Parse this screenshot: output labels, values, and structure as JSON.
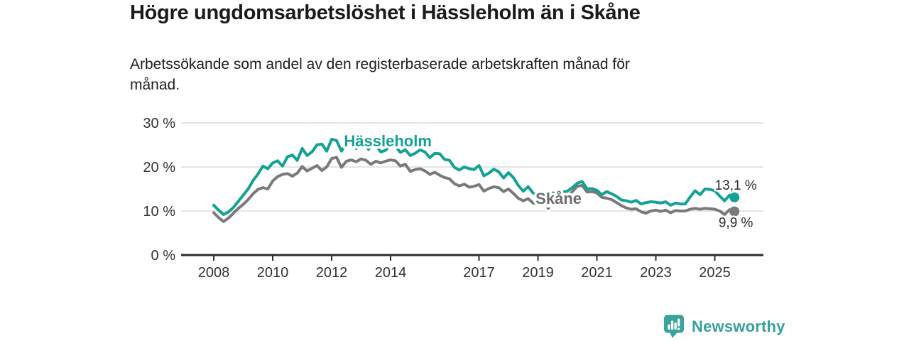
{
  "chart_data": {
    "type": "line",
    "title": "Högre ungdomsarbetslöshet i Hässleholm än i Skåne",
    "subtitle": "Arbetssökande som andel av den registerbaserade arbetskraften månad för månad.",
    "subtitle_lines": [
      "Arbetssökande som andel av den registerbaserade arbetskraften månad för",
      "månad."
    ],
    "unit": "%",
    "x_start": 2008.0,
    "x_step": 0.1666667,
    "xlim": [
      2006.9,
      2026.65
    ],
    "ylim": [
      0,
      31
    ],
    "grid": "horizontal",
    "x_tick_values": [
      2008,
      2010,
      2012,
      2014,
      2017,
      2019,
      2021,
      2023,
      2025
    ],
    "x_tick_labels": [
      "2008",
      "2010",
      "2012",
      "2014",
      "2017",
      "2019",
      "2021",
      "2023",
      "2025"
    ],
    "y_tick_values": [
      0,
      10,
      20,
      30
    ],
    "y_tick_labels": [
      "0 %",
      "10 %",
      "20 %",
      "30 %"
    ],
    "series": [
      {
        "name": "Skåne",
        "color": "#7a7a7a",
        "label_color": "#6d6d6d",
        "end_label": "9,9 %",
        "label_anchor": {
          "x": 2018.92,
          "y": 11.6
        },
        "pointer": {
          "x": 2019.35,
          "y": 10.97
        },
        "values": [
          9.6,
          8.5,
          7.6,
          8.4,
          9.5,
          10.6,
          11.5,
          12.6,
          13.9,
          14.9,
          15.3,
          15.0,
          16.8,
          17.8,
          18.3,
          18.5,
          17.9,
          18.6,
          20.1,
          19.1,
          19.7,
          20.3,
          19.2,
          20.0,
          21.9,
          22.2,
          19.9,
          21.3,
          21.6,
          21.2,
          21.8,
          21.5,
          20.6,
          21.3,
          20.9,
          21.3,
          21.6,
          21.4,
          20.2,
          20.6,
          19.0,
          19.4,
          19.6,
          19.1,
          18.3,
          18.8,
          18.1,
          17.6,
          17.3,
          16.2,
          15.7,
          16.1,
          15.4,
          15.6,
          16.0,
          14.5,
          15.1,
          15.5,
          15.3,
          14.4,
          15.0,
          14.0,
          12.9,
          12.3,
          12.8,
          11.8,
          11.6,
          12.0,
          11.8,
          12.1,
          12.3,
          12.7,
          13.2,
          14.4,
          15.6,
          15.8,
          14.3,
          14.4,
          14.1,
          13.1,
          12.9,
          12.6,
          11.9,
          11.2,
          10.7,
          10.4,
          10.5,
          9.8,
          9.5,
          10.0,
          10.2,
          9.9,
          10.2,
          9.6,
          10.1,
          10.0,
          10.0,
          10.4,
          10.6,
          10.4,
          10.6,
          10.5,
          10.4,
          10.0,
          9.2,
          10.3,
          9.9
        ]
      },
      {
        "name": "Hässleholm",
        "color": "#13a295",
        "label_color": "#13a295",
        "end_label": "13,1 %",
        "label_anchor": {
          "x": 2012.42,
          "y": 24.7
        },
        "pointer": {
          "x": 2013.25,
          "y": 24.35
        },
        "values": [
          11.3,
          10.2,
          9.2,
          9.8,
          10.8,
          12.2,
          13.6,
          15.0,
          16.9,
          18.4,
          20.2,
          19.6,
          20.9,
          21.4,
          20.2,
          22.3,
          22.7,
          21.5,
          24.2,
          22.6,
          23.4,
          25.0,
          25.2,
          23.6,
          26.3,
          26.0,
          23.6,
          25.4,
          25.6,
          24.2,
          25.7,
          25.9,
          24.6,
          24.9,
          23.4,
          23.8,
          25.0,
          24.7,
          23.3,
          23.9,
          22.6,
          23.1,
          23.9,
          23.4,
          22.1,
          23.1,
          23.0,
          21.7,
          21.5,
          19.9,
          19.3,
          20.0,
          19.6,
          19.4,
          20.3,
          18.0,
          18.6,
          19.5,
          18.9,
          17.5,
          18.7,
          17.6,
          15.8,
          14.5,
          15.5,
          14.1,
          13.5,
          14.0,
          13.8,
          14.1,
          13.9,
          14.3,
          14.5,
          15.3,
          16.3,
          16.7,
          15.0,
          15.1,
          14.7,
          13.7,
          14.4,
          13.9,
          13.3,
          12.5,
          12.3,
          12.0,
          12.4,
          11.6,
          11.9,
          12.1,
          12.0,
          11.8,
          12.1,
          11.3,
          11.8,
          11.6,
          11.6,
          13.2,
          14.6,
          13.7,
          15.0,
          14.9,
          14.6,
          13.4,
          12.3,
          13.6,
          13.1
        ]
      }
    ]
  },
  "branding": {
    "name": "Newsworthy",
    "color": "#38a09a"
  },
  "styles": {
    "axis_color": "#2e2e2e",
    "grid_color": "#dcdcdc",
    "tick_label_color": "#333333",
    "value_label_color": "#2d2d2d"
  }
}
